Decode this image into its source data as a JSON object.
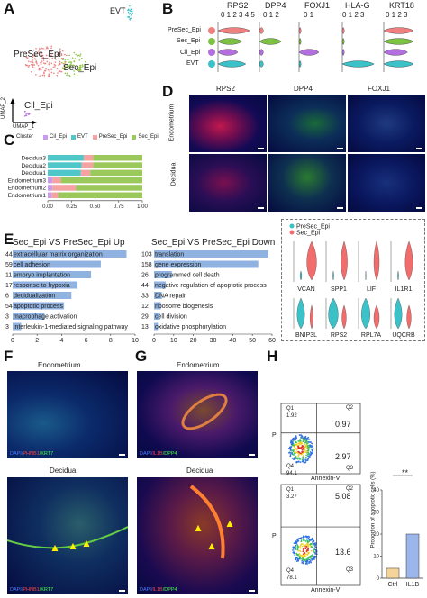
{
  "panelA": {
    "letter": "A",
    "labels": {
      "evt": "EVT",
      "presec": "PreSec_Epi",
      "sec": "Sec_Epi",
      "cil": "Cil_Epi"
    },
    "axis_y": "UMAP_2",
    "axis_x": "UMAP_1"
  },
  "panelB": {
    "letter": "B",
    "genes": [
      "RPS2",
      "DPP4",
      "FOXJ1",
      "HLA-G",
      "KRT18"
    ],
    "rows": [
      "PreSec_Epi",
      "Sec_Epi",
      "Cil_Epi",
      "EVT"
    ],
    "row_colors": [
      "#f08080",
      "#7cc242",
      "#b36fe0",
      "#3bc1c8"
    ],
    "scale_rps2": "0 1 2 3 4 5",
    "scale_dpp4": "0 1 2",
    "scale_foxj1": "0 1",
    "scale_hlag": "0 1 2 3",
    "scale_krt18": "0 1 2 3"
  },
  "panelC": {
    "letter": "C",
    "legend_title": "Cluster",
    "legend": [
      "Cil_Epi",
      "EVT",
      "PreSec_Epi",
      "Sec_Epi"
    ],
    "colors": [
      "#c89bf0",
      "#4fc7c9",
      "#f4a2a2",
      "#9bc85a"
    ],
    "ticks": [
      "0.00",
      "0.25",
      "0.50",
      "0.75",
      "1.00"
    ]
  },
  "chart_data": {
    "type": "bar",
    "orientation": "horizontal-stacked",
    "categories": [
      "Decidua3",
      "Decidua2",
      "Decidua1",
      "Endometrium3",
      "Endometrium2",
      "Endometrium1"
    ],
    "series": [
      {
        "name": "Cil_Epi",
        "values": [
          0.0,
          0.0,
          0.0,
          0.05,
          0.05,
          0.04
        ]
      },
      {
        "name": "EVT",
        "values": [
          0.38,
          0.36,
          0.35,
          0.0,
          0.0,
          0.0
        ]
      },
      {
        "name": "PreSec_Epi",
        "values": [
          0.1,
          0.12,
          0.1,
          0.09,
          0.25,
          0.07
        ]
      },
      {
        "name": "Sec_Epi",
        "values": [
          0.52,
          0.52,
          0.55,
          0.86,
          0.7,
          0.89
        ]
      }
    ],
    "xlim": [
      0,
      1
    ]
  },
  "panelD": {
    "letter": "D",
    "cols": [
      "RPS2",
      "DPP4",
      "FOXJ1"
    ],
    "rows": [
      "Endometrium",
      "Decidua"
    ]
  },
  "panelE": {
    "letter": "E",
    "up_title": "Sec_Epi VS PreSec_Epi Up",
    "down_title": "Sec_Epi VS PreSec_Epi Down",
    "up_terms": [
      {
        "n": "44",
        "term": "extracellular matrix organization",
        "v": 9.3
      },
      {
        "n": "59",
        "term": "cell adhesion",
        "v": 7.2
      },
      {
        "n": "11",
        "term": "embryo implantation",
        "v": 6.4
      },
      {
        "n": "17",
        "term": "response to hypoxia",
        "v": 5.3
      },
      {
        "n": "6",
        "term": "decidualization",
        "v": 4.8
      },
      {
        "n": "54",
        "term": "apoptotic process",
        "v": 4.2
      },
      {
        "n": "3",
        "term": "macrophage activation",
        "v": 2.6
      },
      {
        "n": "3",
        "term": "interleukin-1-mediated signaling pathway",
        "v": 0.7
      }
    ],
    "up_ticks": [
      "0",
      "2",
      "4",
      "6",
      "8",
      "10"
    ],
    "down_terms": [
      {
        "n": "103",
        "term": "translation",
        "v": 58
      },
      {
        "n": "158",
        "term": "gene expression",
        "v": 53
      },
      {
        "n": "26",
        "term": "programmed cell death",
        "v": 9
      },
      {
        "n": "44",
        "term": "negative regulation of apoptotic process",
        "v": 6
      },
      {
        "n": "33",
        "term": "DNA repair",
        "v": 4
      },
      {
        "n": "12",
        "term": "ribosome biogenesis",
        "v": 3.5
      },
      {
        "n": "29",
        "term": "cell division",
        "v": 3
      },
      {
        "n": "13",
        "term": "oxidative phosphorylation",
        "v": 2
      }
    ],
    "down_ticks": [
      "0",
      "10",
      "20",
      "30",
      "40",
      "50",
      "60"
    ],
    "violin_legend": [
      "PreSec_Epi",
      "Sec_Epi"
    ],
    "violin_colors": [
      "#3bc1c8",
      "#f26c6c"
    ],
    "violin_genes_top": [
      "VCAN",
      "SPP1",
      "LIF",
      "IL1R1"
    ],
    "violin_genes_bottom": [
      "BNIP3L",
      "RPS2",
      "RPL7A",
      "UQCRB"
    ]
  },
  "panelF": {
    "letter": "F",
    "top": "Endometrium",
    "bottom": "Decidua",
    "stain_dapi": "DAPI/",
    "stain_1": "PHNB1",
    "stain_2": "/KRT7"
  },
  "panelG": {
    "letter": "G",
    "top": "Endometrium",
    "bottom": "Decidua",
    "stain_dapi": "DAPI/",
    "stain_1": "IL1B",
    "stain_2": "/DPP4"
  },
  "panelH": {
    "letter": "H",
    "top": {
      "q1": "Q1",
      "q1v": "1.92",
      "q2": "Q2",
      "q2v": "0.97",
      "q3": "Q3",
      "q3v": "2.97",
      "q4": "Q4",
      "q4v": "94.1"
    },
    "bottom": {
      "q1": "Q1",
      "q1v": "3.27",
      "q2": "Q2",
      "q2v": "5.08",
      "q3": "Q3",
      "q3v": "13.6",
      "q4": "Q4",
      "q4v": "78.1"
    },
    "flow_y": "PI",
    "flow_x": "Annexin-V",
    "bar_ylabel": "Proportion of apoptotic cells (%)",
    "bar_ticks": [
      "0",
      "10",
      "20",
      "30",
      "40"
    ],
    "bar_categories": [
      "Ctrl",
      "IL1B"
    ],
    "bar_values": [
      4.5,
      20
    ],
    "significance": "**"
  }
}
